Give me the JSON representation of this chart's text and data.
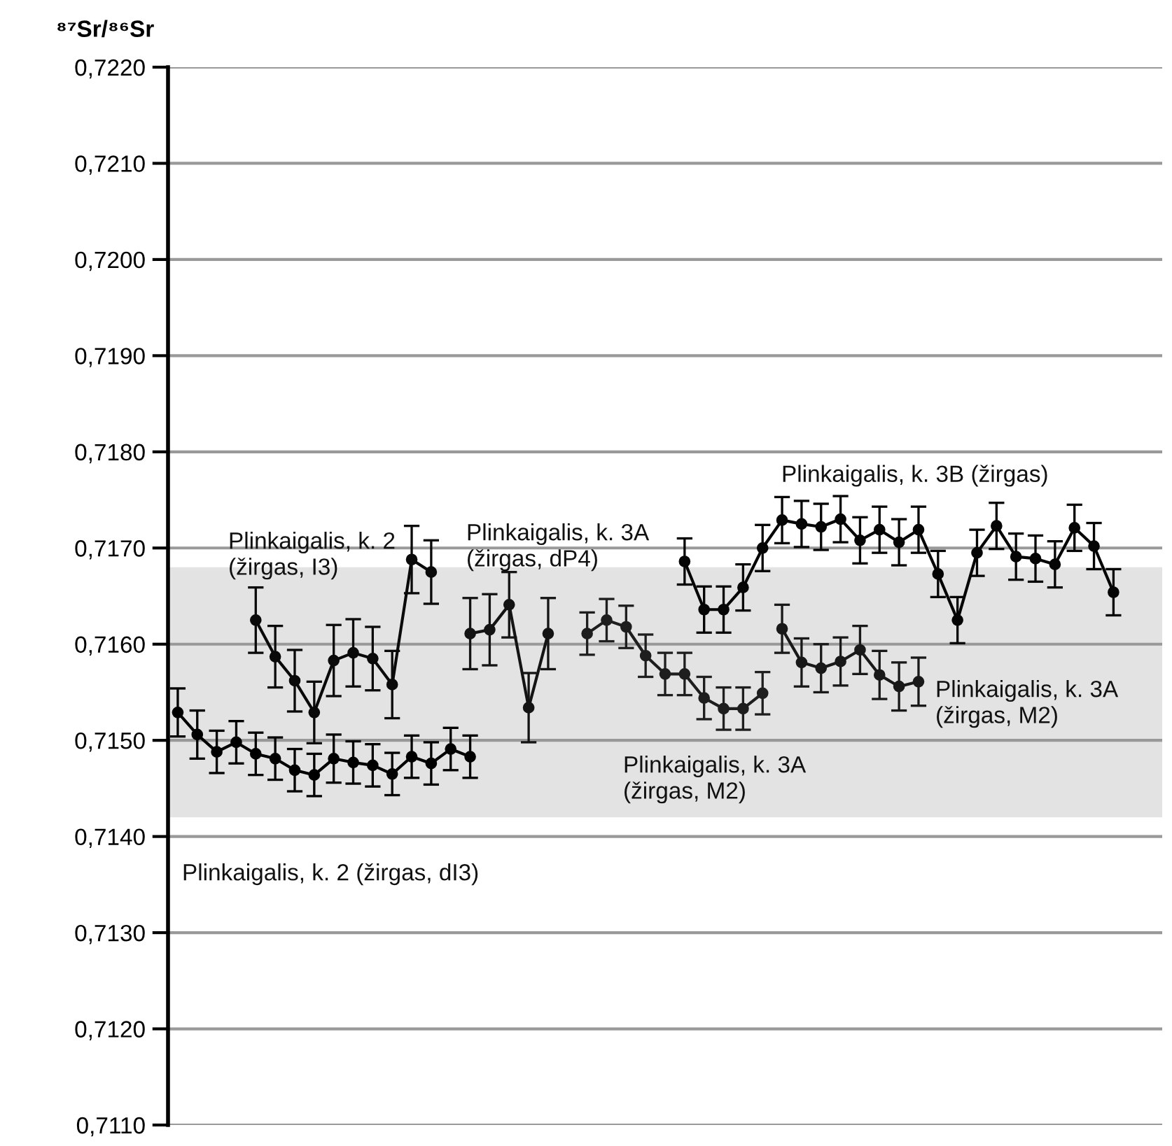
{
  "chart_data": {
    "type": "line",
    "ylabel": "⁸⁷Sr/⁸⁶Sr",
    "categories": [
      null,
      null,
      null,
      null,
      null,
      null,
      null,
      null,
      null,
      null,
      null,
      null,
      null,
      null,
      null,
      null,
      null,
      null,
      null,
      null,
      null,
      null,
      null,
      null,
      null,
      null,
      null,
      null,
      null,
      null,
      null,
      null,
      null,
      null,
      null,
      null,
      null,
      null,
      null,
      null,
      null,
      null,
      null,
      null,
      null,
      null,
      null,
      null,
      null,
      null,
      null
    ],
    "ylim": [
      0.711,
      0.722
    ],
    "yticks": [
      {
        "value": 0.711,
        "label": "0,7110"
      },
      {
        "value": 0.712,
        "label": "0,7120"
      },
      {
        "value": 0.713,
        "label": "0,7130"
      },
      {
        "value": 0.714,
        "label": "0,7140"
      },
      {
        "value": 0.715,
        "label": "0,7150"
      },
      {
        "value": 0.716,
        "label": "0,7160"
      },
      {
        "value": 0.717,
        "label": "0,7170"
      },
      {
        "value": 0.718,
        "label": "0,7180"
      },
      {
        "value": 0.719,
        "label": "0,7190"
      },
      {
        "value": 0.72,
        "label": "0,7200"
      },
      {
        "value": 0.721,
        "label": "0,7210"
      },
      {
        "value": 0.722,
        "label": "0,7220"
      }
    ],
    "grid": "y",
    "marker": "circle",
    "line_style": "solid",
    "tick_labels": "y",
    "bands": [
      {
        "axis": "y",
        "from": 0.7142,
        "to": 0.7168,
        "color": "#e3e3e3"
      }
    ],
    "annotations": [
      "Plinkaigalis, k. 2 (žirgas, dI3)",
      "Plinkaigalis, k. 2\n(žirgas, I3)",
      "Plinkaigalis, k. 3A\n(žirgas, dP4)",
      "Plinkaigalis, k. 3A\n(žirgas, M2)",
      "Plinkaigalis, k. 3B (žirgas)",
      "Plinkaigalis, k. 3A\n(žirgas, M2)"
    ],
    "series": [
      {
        "color": "#000000",
        "values": [
          0.71529,
          0.71506,
          0.71488,
          0.71498,
          0.71486,
          0.71481,
          0.71469,
          0.71464,
          0.71481,
          0.71477,
          0.71474,
          0.71465,
          0.71483,
          0.71476,
          0.71491,
          0.71483,
          null,
          null,
          null,
          null,
          null,
          null,
          null,
          null,
          null,
          null,
          null,
          null,
          null,
          null,
          null,
          null,
          null,
          null,
          null,
          null,
          null,
          null,
          null,
          null,
          null,
          null,
          null,
          null,
          null,
          null,
          null,
          null,
          null,
          null,
          null
        ],
        "errors": [
          0.00025,
          0.00025,
          0.00022,
          0.00022,
          0.00022,
          0.00022,
          0.00022,
          0.00022,
          0.00025,
          0.00022,
          0.00022,
          0.00022,
          0.00022,
          0.00022,
          0.00022,
          0.00022,
          null,
          null,
          null,
          null,
          null,
          null,
          null,
          null,
          null,
          null,
          null,
          null,
          null,
          null,
          null,
          null,
          null,
          null,
          null,
          null,
          null,
          null,
          null,
          null,
          null,
          null,
          null,
          null,
          null,
          null,
          null,
          null,
          null,
          null,
          null
        ]
      },
      {
        "color": "#0a0a0a",
        "values": [
          null,
          null,
          null,
          null,
          0.71625,
          0.71587,
          0.71562,
          0.71529,
          0.71583,
          0.71591,
          0.71585,
          0.71558,
          0.71688,
          0.71675,
          null,
          null,
          null,
          null,
          null,
          null,
          null,
          null,
          null,
          null,
          null,
          null,
          null,
          null,
          null,
          null,
          null,
          null,
          null,
          null,
          null,
          null,
          null,
          null,
          null,
          null,
          null,
          null,
          null,
          null,
          null,
          null,
          null,
          null,
          null,
          null,
          null
        ],
        "errors": [
          null,
          null,
          null,
          null,
          0.00034,
          0.00032,
          0.00032,
          0.00032,
          0.00037,
          0.00035,
          0.00033,
          0.00035,
          0.00035,
          0.00033,
          null,
          null,
          null,
          null,
          null,
          null,
          null,
          null,
          null,
          null,
          null,
          null,
          null,
          null,
          null,
          null,
          null,
          null,
          null,
          null,
          null,
          null,
          null,
          null,
          null,
          null,
          null,
          null,
          null,
          null,
          null,
          null,
          null,
          null,
          null,
          null,
          null
        ]
      },
      {
        "color": "#141414",
        "values": [
          null,
          null,
          null,
          null,
          null,
          null,
          null,
          null,
          null,
          null,
          null,
          null,
          null,
          null,
          null,
          0.71611,
          0.71615,
          0.71641,
          0.71534,
          0.71611,
          null,
          null,
          null,
          null,
          null,
          null,
          null,
          null,
          null,
          null,
          null,
          null,
          null,
          null,
          null,
          null,
          null,
          null,
          null,
          null,
          null,
          null,
          null,
          null,
          null,
          null,
          null,
          null,
          null,
          null,
          null
        ],
        "errors": [
          null,
          null,
          null,
          null,
          null,
          null,
          null,
          null,
          null,
          null,
          null,
          null,
          null,
          null,
          null,
          0.00037,
          0.00037,
          0.00034,
          0.00036,
          0.00037,
          null,
          null,
          null,
          null,
          null,
          null,
          null,
          null,
          null,
          null,
          null,
          null,
          null,
          null,
          null,
          null,
          null,
          null,
          null,
          null,
          null,
          null,
          null,
          null,
          null,
          null,
          null,
          null,
          null,
          null,
          null
        ]
      },
      {
        "color": "#1e1e1e",
        "values": [
          null,
          null,
          null,
          null,
          null,
          null,
          null,
          null,
          null,
          null,
          null,
          null,
          null,
          null,
          null,
          null,
          null,
          null,
          null,
          null,
          null,
          0.71611,
          0.71625,
          0.71618,
          0.71588,
          0.71569,
          0.71569,
          0.71544,
          0.71533,
          0.71533,
          0.71549,
          null,
          null,
          null,
          null,
          null,
          null,
          null,
          null,
          null,
          null,
          null,
          null,
          null,
          null,
          null,
          null,
          null,
          null,
          null,
          null
        ],
        "errors": [
          null,
          null,
          null,
          null,
          null,
          null,
          null,
          null,
          null,
          null,
          null,
          null,
          null,
          null,
          null,
          null,
          null,
          null,
          null,
          null,
          null,
          0.00022,
          0.00022,
          0.00022,
          0.00022,
          0.00022,
          0.00022,
          0.00022,
          0.00022,
          0.00022,
          0.00022,
          null,
          null,
          null,
          null,
          null,
          null,
          null,
          null,
          null,
          null,
          null,
          null,
          null,
          null,
          null,
          null,
          null,
          null,
          null,
          null
        ]
      },
      {
        "color": "#050505",
        "values": [
          null,
          null,
          null,
          null,
          null,
          null,
          null,
          null,
          null,
          null,
          null,
          null,
          null,
          null,
          null,
          null,
          null,
          null,
          null,
          null,
          null,
          null,
          null,
          null,
          null,
          null,
          0.71686,
          0.71636,
          0.71636,
          0.71659,
          0.717,
          0.71729,
          0.71725,
          0.71722,
          0.7173,
          0.71708,
          0.71719,
          0.71706,
          0.71719,
          0.71673,
          0.71625,
          0.71695,
          0.71723,
          0.71691,
          0.71689,
          0.71683,
          0.71721,
          0.71702,
          0.71654,
          null,
          null
        ],
        "errors": [
          null,
          null,
          null,
          null,
          null,
          null,
          null,
          null,
          null,
          null,
          null,
          null,
          null,
          null,
          null,
          null,
          null,
          null,
          null,
          null,
          null,
          null,
          null,
          null,
          null,
          null,
          0.00024,
          0.00024,
          0.00024,
          0.00024,
          0.00024,
          0.00024,
          0.00024,
          0.00024,
          0.00024,
          0.00024,
          0.00024,
          0.00024,
          0.00024,
          0.00024,
          0.00024,
          0.00024,
          0.00024,
          0.00024,
          0.00024,
          0.00024,
          0.00024,
          0.00024,
          0.00024,
          null,
          null
        ]
      },
      {
        "color": "#191919",
        "values": [
          null,
          null,
          null,
          null,
          null,
          null,
          null,
          null,
          null,
          null,
          null,
          null,
          null,
          null,
          null,
          null,
          null,
          null,
          null,
          null,
          null,
          null,
          null,
          null,
          null,
          null,
          null,
          null,
          null,
          null,
          null,
          0.71616,
          0.71581,
          0.71575,
          0.71582,
          0.71594,
          0.71568,
          0.71556,
          0.71561,
          null,
          null,
          null,
          null,
          null,
          null,
          null,
          null,
          null,
          null,
          null,
          null
        ],
        "errors": [
          null,
          null,
          null,
          null,
          null,
          null,
          null,
          null,
          null,
          null,
          null,
          null,
          null,
          null,
          null,
          null,
          null,
          null,
          null,
          null,
          null,
          null,
          null,
          null,
          null,
          null,
          null,
          null,
          null,
          null,
          null,
          0.00025,
          0.00025,
          0.00025,
          0.00025,
          0.00025,
          0.00025,
          0.00025,
          0.00025,
          null,
          null,
          null,
          null,
          null,
          null,
          null,
          null,
          null,
          null,
          null,
          null
        ]
      }
    ]
  }
}
